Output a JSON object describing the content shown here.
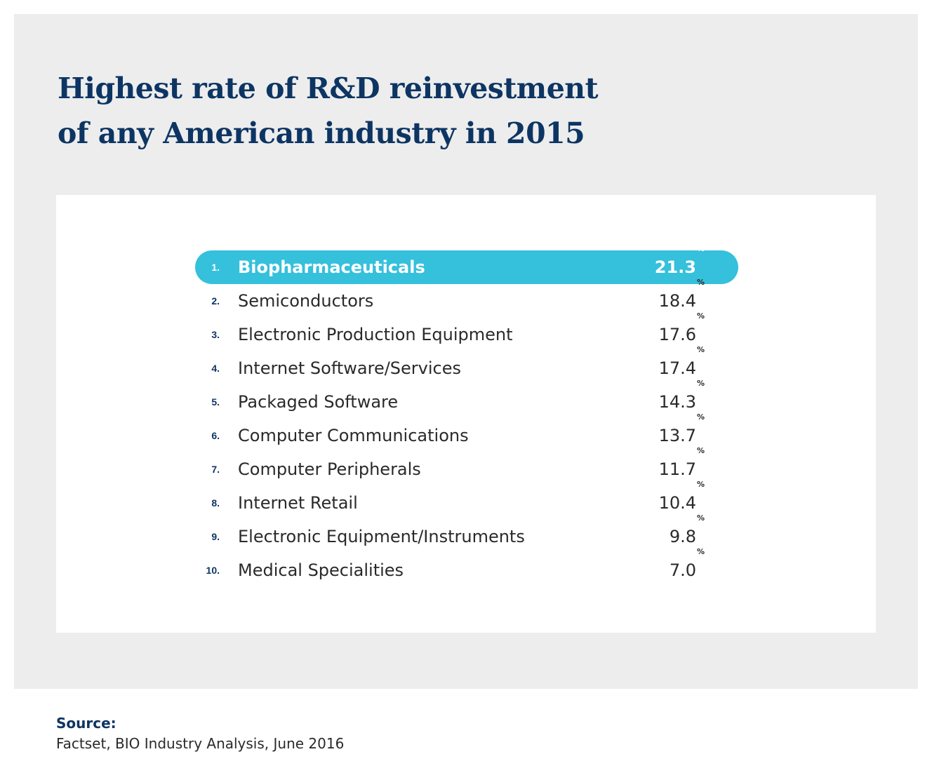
{
  "title_lines": [
    "Highest rate of R&D reinvestment",
    "of any American industry in 2015"
  ],
  "percent_sign": "%",
  "source": {
    "label": "Source:",
    "text": "Factset, BIO Industry Analysis, June 2016"
  },
  "colors": {
    "title": "#0d3563",
    "highlight": "#35c0dc",
    "panel_background": "#ededed"
  },
  "chart_data": {
    "type": "table",
    "title": "Highest rate of R&D reinvestment of any American industry in 2015",
    "columns": [
      "rank",
      "industry",
      "value"
    ],
    "unit": "%",
    "rows": [
      {
        "rank": "1.",
        "industry": "Biopharmaceuticals",
        "value": "21.3",
        "highlighted": true
      },
      {
        "rank": "2.",
        "industry": "Semiconductors",
        "value": "18.4"
      },
      {
        "rank": "3.",
        "industry": "Electronic Production Equipment",
        "value": "17.6"
      },
      {
        "rank": "4.",
        "industry": "Internet Software/Services",
        "value": "17.4"
      },
      {
        "rank": "5.",
        "industry": "Packaged Software",
        "value": "14.3"
      },
      {
        "rank": "6.",
        "industry": "Computer Communications",
        "value": "13.7"
      },
      {
        "rank": "7.",
        "industry": "Computer Peripherals",
        "value": "11.7"
      },
      {
        "rank": "8.",
        "industry": "Internet Retail",
        "value": "10.4"
      },
      {
        "rank": "9.",
        "industry": "Electronic Equipment/Instruments",
        "value": "9.8"
      },
      {
        "rank": "10.",
        "industry": "Medical Specialities",
        "value": "7.0"
      }
    ]
  }
}
